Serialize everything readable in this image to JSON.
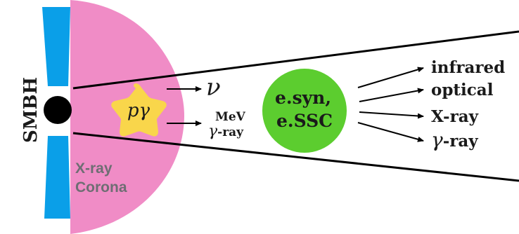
{
  "diagram": {
    "smbh_label": "SMBH",
    "corona_label_line1": "X-ray",
    "corona_label_line2": "Corona",
    "interaction_label": "pγ",
    "neutrino_label": "ν",
    "mev_label_line1": "MeV",
    "mev_label_line2_symbol": "γ",
    "mev_label_line2_text": "-ray",
    "emission_label_line1": "e.syn,",
    "emission_label_line2": "e.SSC",
    "outputs": {
      "infrared": "infrared",
      "optical": "optical",
      "xray": "X-ray",
      "gamma_symbol": "γ",
      "gamma_text": "-ray"
    },
    "colors": {
      "jet_blue": "#0a9fe8",
      "corona_pink": "#f08cc6",
      "star_yellow": "#f9d64b",
      "blob_green": "#5ccd2f",
      "black": "#000000",
      "corona_text": "#6e6e73"
    }
  }
}
